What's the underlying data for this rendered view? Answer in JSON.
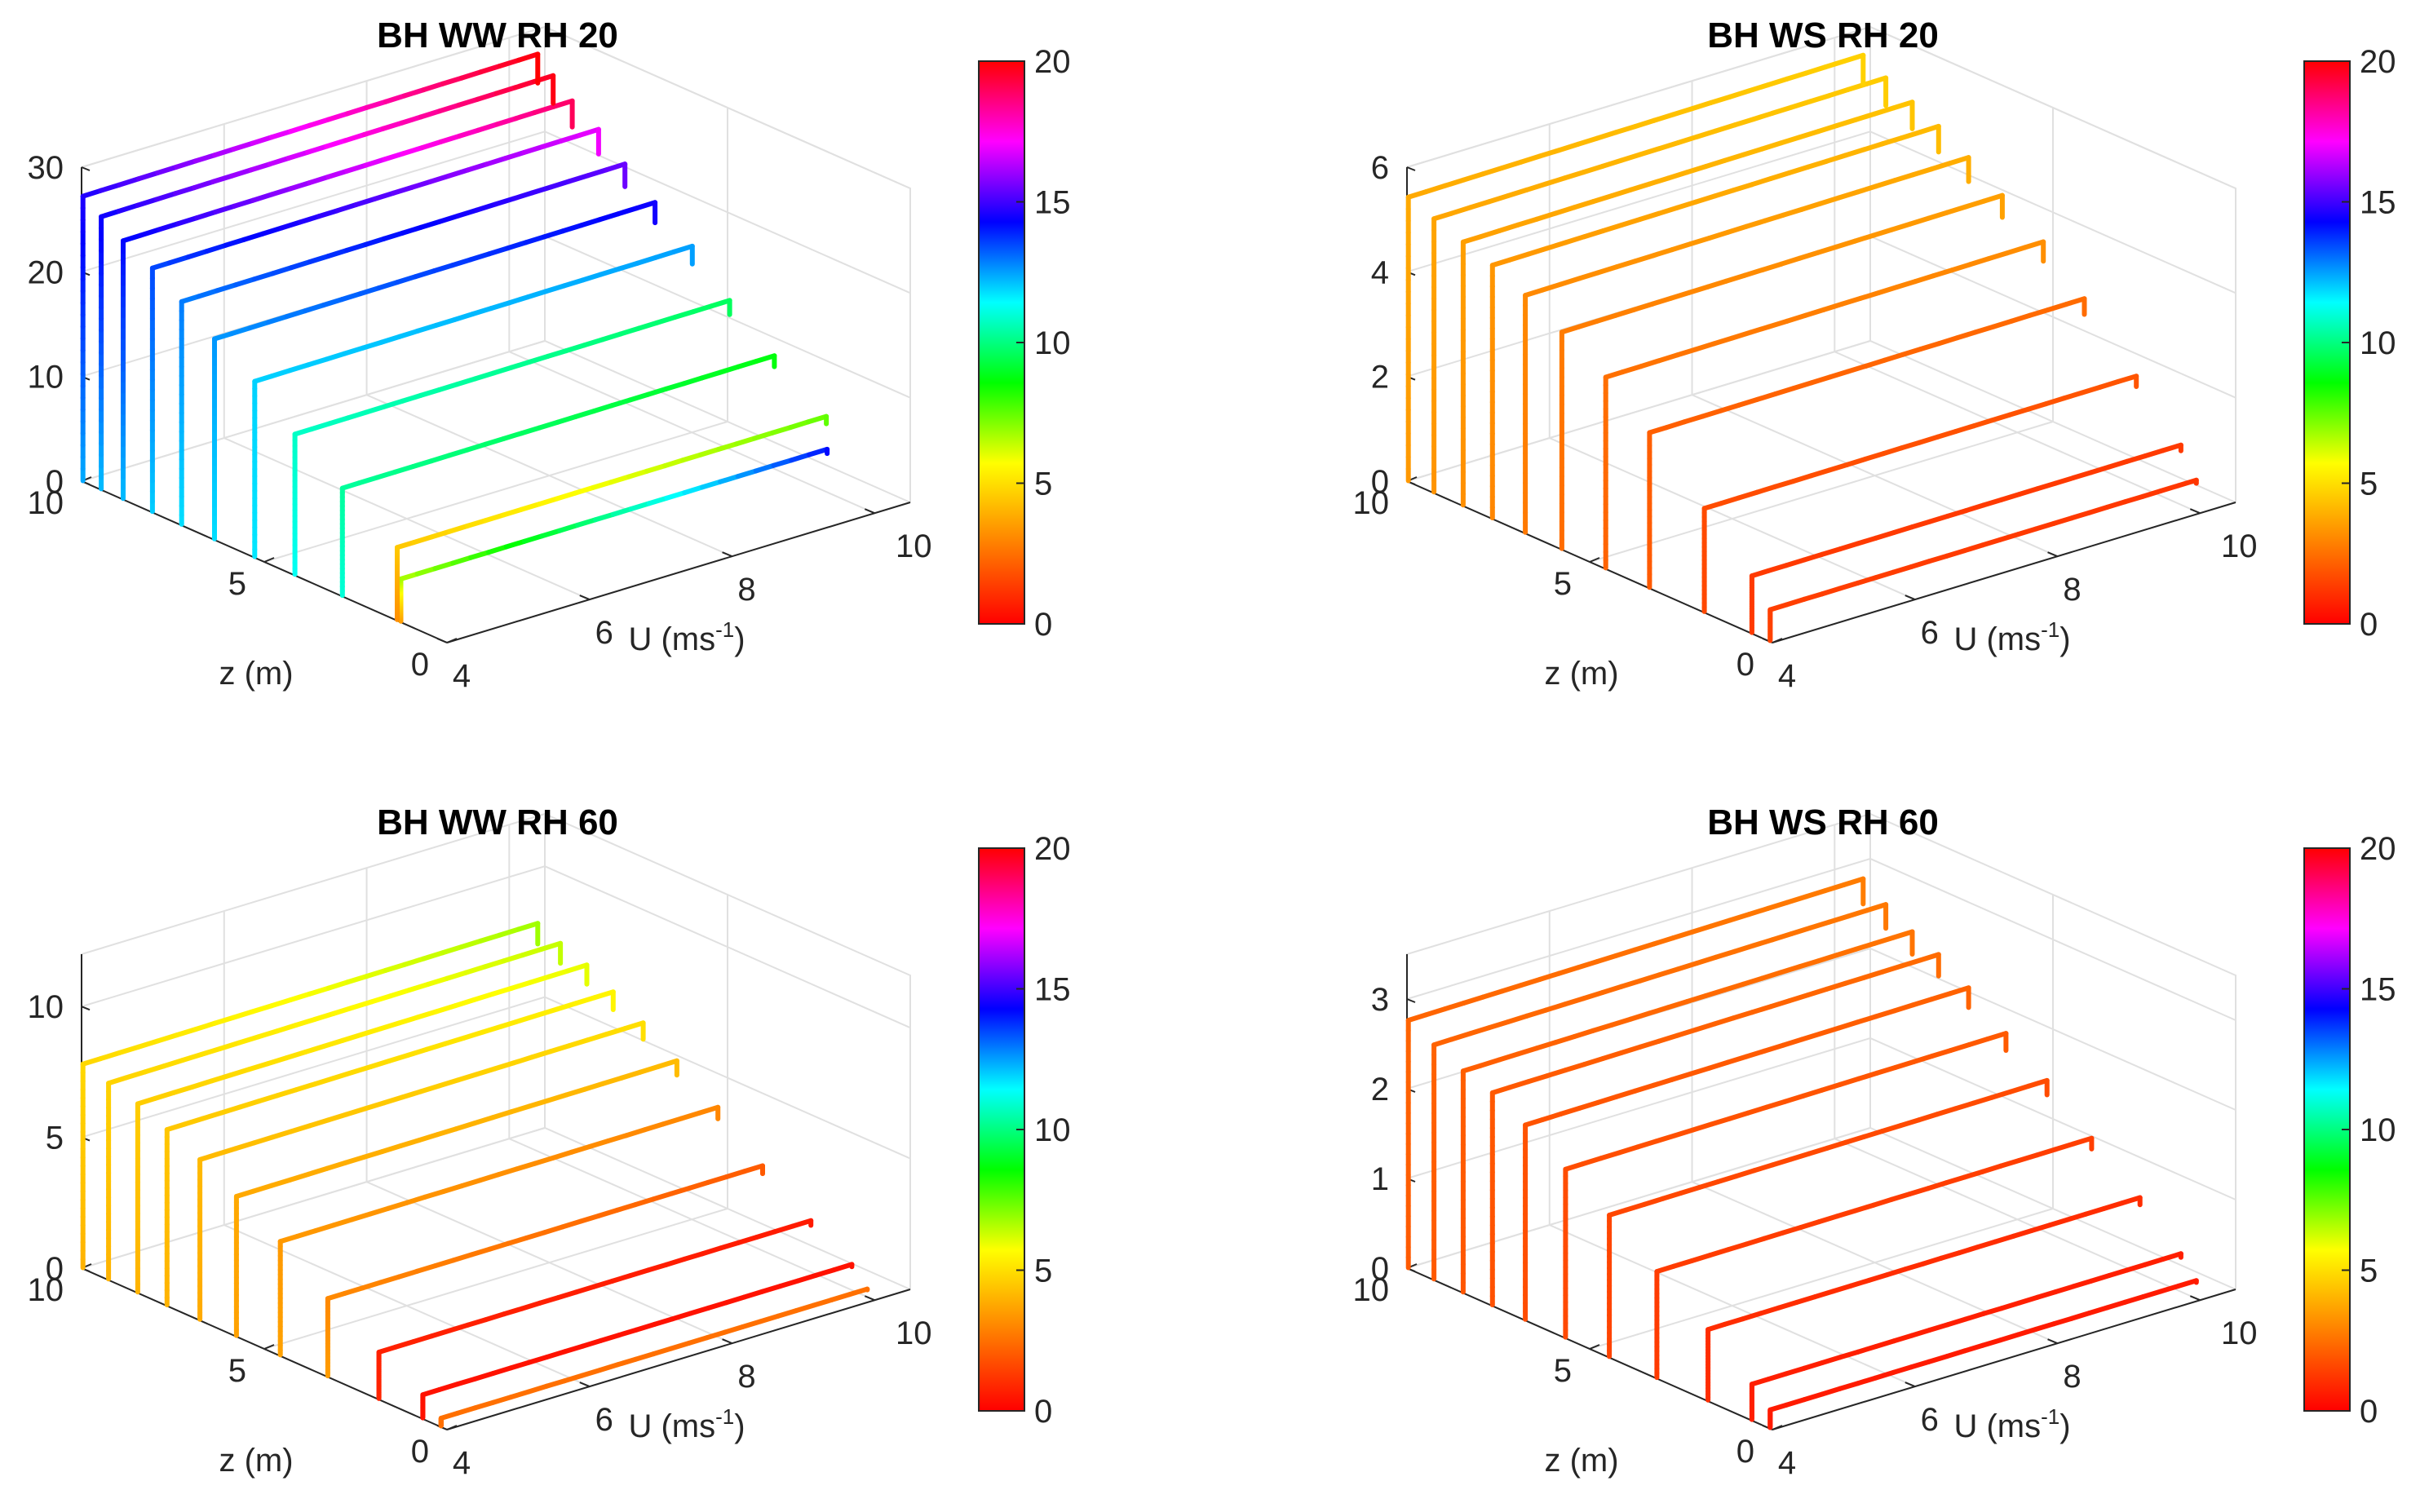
{
  "figure_title": "",
  "colormap": {
    "name": "hsv-reversed",
    "colors": [
      "#ff0000",
      "#ff8000",
      "#ffff00",
      "#00ff00",
      "#00ffff",
      "#0000ff",
      "#ff00ff",
      "#ff0000"
    ],
    "range": [
      0,
      20
    ],
    "ticks": [
      "0",
      "5",
      "10",
      "15",
      "20"
    ]
  },
  "chart_data": [
    {
      "type": "line3d",
      "title": "BH WW RH 20",
      "xlabel": "U (ms",
      "xlabel_sup": "-1",
      "xlabel_close": ")",
      "ylabel": "z (m)",
      "zlabel": "",
      "xlim": [
        4,
        10.5
      ],
      "ylim": [
        0,
        10
      ],
      "zlim": [
        0,
        30
      ],
      "xticks": [
        "4",
        "6",
        "8",
        "10"
      ],
      "yticks": [
        "0",
        "5",
        "10"
      ],
      "zticks": [
        "0",
        "10",
        "20",
        "30"
      ],
      "U_values": [
        4,
        4.6,
        5.2,
        5.8,
        6.4,
        7.0,
        7.6,
        8.2,
        8.8,
        9.4,
        10.0
      ],
      "series": [
        {
          "U": 4.0,
          "z_top": 1.3,
          "peak": 4.1,
          "color_base": 3.5,
          "color_top": 14.2
        },
        {
          "U": 4.6,
          "z_top": 1.4,
          "peak": 7.0,
          "color_base": 3.2,
          "color_top": 7.5
        },
        {
          "U": 5.2,
          "z_top": 2.9,
          "peak": 10.4,
          "color_base": 11.0,
          "color_top": 8.7
        },
        {
          "U": 5.8,
          "z_top": 4.2,
          "peak": 13.6,
          "color_base": 11.3,
          "color_top": 9.6
        },
        {
          "U": 6.4,
          "z_top": 5.3,
          "peak": 17.0,
          "color_base": 11.7,
          "color_top": 12.5
        },
        {
          "U": 7.0,
          "z_top": 6.4,
          "peak": 19.4,
          "color_base": 11.8,
          "color_top": 14.5
        },
        {
          "U": 7.6,
          "z_top": 7.3,
          "peak": 21.6,
          "color_base": 11.8,
          "color_top": 15.5
        },
        {
          "U": 8.2,
          "z_top": 8.1,
          "peak": 23.6,
          "color_base": 12.0,
          "color_top": 17.0
        },
        {
          "U": 8.8,
          "z_top": 8.9,
          "peak": 25.0,
          "color_base": 12.2,
          "color_top": 19.0
        },
        {
          "U": 9.4,
          "z_top": 9.5,
          "peak": 26.4,
          "color_base": 12.2,
          "color_top": 19.8
        },
        {
          "U": 10.0,
          "z_top": 10.0,
          "peak": 27.6,
          "color_base": 12.4,
          "color_top": 20.0
        }
      ]
    },
    {
      "type": "line3d",
      "title": "BH WS RH 20",
      "xlabel": "U (ms",
      "xlabel_sup": "-1",
      "xlabel_close": ")",
      "ylabel": "z (m)",
      "zlabel": "",
      "xlim": [
        4,
        10.5
      ],
      "ylim": [
        0,
        10
      ],
      "zlim": [
        0,
        6
      ],
      "xticks": [
        "4",
        "6",
        "8",
        "10"
      ],
      "yticks": [
        "0",
        "5",
        "10"
      ],
      "zticks": [
        "0",
        "2",
        "4",
        "6"
      ],
      "series": [
        {
          "U": 4.0,
          "z_top": 0.1,
          "peak": 0.6,
          "color_base": 1.5,
          "color_top": 1.2
        },
        {
          "U": 4.6,
          "z_top": 0.6,
          "peak": 1.1,
          "color_base": 1.3,
          "color_top": 1.3
        },
        {
          "U": 5.2,
          "z_top": 1.9,
          "peak": 2.0,
          "color_base": 1.6,
          "color_top": 1.9
        },
        {
          "U": 5.8,
          "z_top": 3.4,
          "peak": 3.0,
          "color_base": 2.0,
          "color_top": 2.4
        },
        {
          "U": 6.4,
          "z_top": 4.6,
          "peak": 3.7,
          "color_base": 2.2,
          "color_top": 3.2
        },
        {
          "U": 7.0,
          "z_top": 5.8,
          "peak": 4.2,
          "color_base": 2.4,
          "color_top": 3.6
        },
        {
          "U": 7.6,
          "z_top": 6.8,
          "peak": 4.6,
          "color_base": 2.7,
          "color_top": 3.9
        },
        {
          "U": 8.2,
          "z_top": 7.7,
          "peak": 4.9,
          "color_base": 3.0,
          "color_top": 4.2
        },
        {
          "U": 8.8,
          "z_top": 8.5,
          "peak": 5.1,
          "color_base": 3.2,
          "color_top": 4.4
        },
        {
          "U": 9.4,
          "z_top": 9.3,
          "peak": 5.3,
          "color_base": 3.3,
          "color_top": 4.6
        },
        {
          "U": 10.0,
          "z_top": 10.0,
          "peak": 5.5,
          "color_base": 3.4,
          "color_top": 4.7
        }
      ]
    },
    {
      "type": "line3d",
      "title": "BH WW RH 60",
      "xlabel": "U (ms",
      "xlabel_sup": "-1",
      "xlabel_close": ")",
      "ylabel": "z (m)",
      "zlabel": "",
      "xlim": [
        4,
        10.5
      ],
      "ylim": [
        0,
        10
      ],
      "zlim": [
        0,
        12
      ],
      "xticks": [
        "4",
        "6",
        "8",
        "10"
      ],
      "yticks": [
        "0",
        "5",
        "10"
      ],
      "zticks": [
        "0",
        "5",
        "10"
      ],
      "series": [
        {
          "U": 4.0,
          "z_top": 0.2,
          "peak": 0.3,
          "color_base": 2.5,
          "color_top": 2.5
        },
        {
          "U": 4.6,
          "z_top": 0.7,
          "peak": 0.9,
          "color_base": 0.4,
          "color_top": 0.4
        },
        {
          "U": 5.2,
          "z_top": 1.9,
          "peak": 1.8,
          "color_base": 0.8,
          "color_top": 0.6
        },
        {
          "U": 5.8,
          "z_top": 3.3,
          "peak": 3.0,
          "color_base": 3.5,
          "color_top": 2.0
        },
        {
          "U": 6.4,
          "z_top": 4.6,
          "peak": 4.4,
          "color_base": 3.6,
          "color_top": 3.0
        },
        {
          "U": 7.0,
          "z_top": 5.8,
          "peak": 5.4,
          "color_base": 3.6,
          "color_top": 4.2
        },
        {
          "U": 7.6,
          "z_top": 6.8,
          "peak": 6.2,
          "color_base": 3.8,
          "color_top": 5.0
        },
        {
          "U": 8.2,
          "z_top": 7.7,
          "peak": 6.8,
          "color_base": 4.0,
          "color_top": 5.5
        },
        {
          "U": 8.8,
          "z_top": 8.5,
          "peak": 7.3,
          "color_base": 4.0,
          "color_top": 6.0
        },
        {
          "U": 9.4,
          "z_top": 9.3,
          "peak": 7.6,
          "color_base": 4.0,
          "color_top": 6.4
        },
        {
          "U": 10.0,
          "z_top": 10.0,
          "peak": 7.9,
          "color_base": 4.0,
          "color_top": 6.8
        }
      ]
    },
    {
      "type": "line3d",
      "title": "BH WS RH 60",
      "xlabel": "U (ms",
      "xlabel_sup": "-1",
      "xlabel_close": ")",
      "ylabel": "z (m)",
      "zlabel": "",
      "xlim": [
        4,
        10.5
      ],
      "ylim": [
        0,
        10
      ],
      "zlim": [
        0,
        3.5
      ],
      "xticks": [
        "4",
        "6",
        "8",
        "10"
      ],
      "yticks": [
        "0",
        "5",
        "10"
      ],
      "zticks": [
        "0",
        "1",
        "2",
        "3"
      ],
      "series": [
        {
          "U": 4.0,
          "z_top": 0.1,
          "peak": 0.2,
          "color_base": 0.6,
          "color_top": 0.6
        },
        {
          "U": 4.6,
          "z_top": 0.6,
          "peak": 0.4,
          "color_base": 0.7,
          "color_top": 0.7
        },
        {
          "U": 5.2,
          "z_top": 1.8,
          "peak": 0.8,
          "color_base": 1.0,
          "color_top": 1.0
        },
        {
          "U": 5.8,
          "z_top": 3.2,
          "peak": 1.2,
          "color_base": 1.3,
          "color_top": 1.4
        },
        {
          "U": 6.4,
          "z_top": 4.5,
          "peak": 1.6,
          "color_base": 1.5,
          "color_top": 1.7
        },
        {
          "U": 7.0,
          "z_top": 5.7,
          "peak": 1.9,
          "color_base": 1.6,
          "color_top": 2.0
        },
        {
          "U": 7.6,
          "z_top": 6.8,
          "peak": 2.2,
          "color_base": 1.7,
          "color_top": 2.2
        },
        {
          "U": 8.2,
          "z_top": 7.7,
          "peak": 2.4,
          "color_base": 1.8,
          "color_top": 2.4
        },
        {
          "U": 8.8,
          "z_top": 8.5,
          "peak": 2.5,
          "color_base": 1.9,
          "color_top": 2.6
        },
        {
          "U": 9.4,
          "z_top": 9.3,
          "peak": 2.65,
          "color_base": 2.0,
          "color_top": 2.7
        },
        {
          "U": 10.0,
          "z_top": 10.0,
          "peak": 2.8,
          "color_base": 2.0,
          "color_top": 2.8
        }
      ]
    }
  ]
}
